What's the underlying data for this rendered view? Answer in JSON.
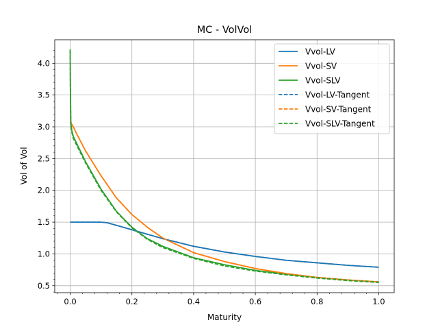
{
  "chart_data": {
    "type": "line",
    "title": "MC - VolVol",
    "xlabel": "Maturity",
    "ylabel": "Vol of Vol",
    "xlim": [
      -0.05,
      1.05
    ],
    "ylim": [
      0.39,
      4.37
    ],
    "grid": true,
    "legend_position": "top-right",
    "x_ticks": [
      0.0,
      0.2,
      0.4,
      0.6,
      0.8,
      1.0
    ],
    "x_tick_labels": [
      "0.0",
      "0.2",
      "0.4",
      "0.6",
      "0.8",
      "1.0"
    ],
    "y_ticks": [
      0.5,
      1.0,
      1.5,
      2.0,
      2.5,
      3.0,
      3.5,
      4.0
    ],
    "y_tick_labels": [
      "0.5",
      "1.0",
      "1.5",
      "2.0",
      "2.5",
      "3.0",
      "3.5",
      "4.0"
    ],
    "series": [
      {
        "name": "Vvol-LV",
        "color": "#1f77b4",
        "style": "solid",
        "x": [
          0.0,
          0.05,
          0.1,
          0.12,
          0.15,
          0.2,
          0.25,
          0.3,
          0.4,
          0.5,
          0.6,
          0.7,
          0.8,
          0.9,
          1.0
        ],
        "y": [
          1.5,
          1.5,
          1.5,
          1.49,
          1.45,
          1.38,
          1.31,
          1.24,
          1.12,
          1.03,
          0.96,
          0.9,
          0.86,
          0.82,
          0.79
        ]
      },
      {
        "name": "Vvol-SV",
        "color": "#ff7f0e",
        "style": "solid",
        "x": [
          0.0,
          0.01,
          0.02,
          0.05,
          0.1,
          0.15,
          0.2,
          0.25,
          0.3,
          0.4,
          0.5,
          0.6,
          0.7,
          0.8,
          0.9,
          1.0
        ],
        "y": [
          3.08,
          3.0,
          2.9,
          2.62,
          2.23,
          1.88,
          1.62,
          1.42,
          1.25,
          1.02,
          0.88,
          0.77,
          0.69,
          0.63,
          0.59,
          0.56
        ]
      },
      {
        "name": "Vvol-SLV",
        "color": "#2ca02c",
        "style": "solid",
        "x": [
          0.0,
          0.0005,
          0.002,
          0.005,
          0.01,
          0.02,
          0.05,
          0.1,
          0.15,
          0.2,
          0.25,
          0.3,
          0.4,
          0.5,
          0.6,
          0.7,
          0.8,
          0.9,
          1.0
        ],
        "y": [
          4.22,
          3.7,
          3.1,
          2.95,
          2.85,
          2.75,
          2.45,
          2.02,
          1.67,
          1.42,
          1.24,
          1.12,
          0.94,
          0.83,
          0.74,
          0.68,
          0.63,
          0.59,
          0.56
        ]
      },
      {
        "name": "Vvol-LV-Tangent",
        "color": "#1f77b4",
        "style": "dashed",
        "x": [
          0.0,
          0.05,
          0.1,
          0.12,
          0.15,
          0.2,
          0.25,
          0.3,
          0.4,
          0.5,
          0.6,
          0.7,
          0.8,
          0.9,
          1.0
        ],
        "y": [
          1.5,
          1.5,
          1.5,
          1.49,
          1.45,
          1.38,
          1.31,
          1.24,
          1.12,
          1.03,
          0.96,
          0.9,
          0.86,
          0.82,
          0.79
        ]
      },
      {
        "name": "Vvol-SV-Tangent",
        "color": "#ff7f0e",
        "style": "dashed",
        "x": [
          0.0,
          0.01,
          0.02,
          0.05,
          0.1,
          0.15,
          0.2,
          0.25,
          0.3,
          0.4,
          0.5,
          0.6,
          0.7,
          0.8,
          0.9,
          1.0
        ],
        "y": [
          3.08,
          3.0,
          2.9,
          2.62,
          2.23,
          1.88,
          1.62,
          1.42,
          1.25,
          1.02,
          0.88,
          0.77,
          0.69,
          0.63,
          0.59,
          0.56
        ]
      },
      {
        "name": "Vvol-SLV-Tangent",
        "color": "#2ca02c",
        "style": "dashed",
        "x": [
          0.0,
          0.0005,
          0.002,
          0.005,
          0.01,
          0.02,
          0.05,
          0.1,
          0.15,
          0.2,
          0.25,
          0.3,
          0.4,
          0.5,
          0.6,
          0.7,
          0.8,
          0.9,
          1.0
        ],
        "y": [
          4.2,
          3.65,
          3.05,
          2.92,
          2.82,
          2.72,
          2.43,
          2.0,
          1.66,
          1.41,
          1.23,
          1.1,
          0.93,
          0.81,
          0.73,
          0.67,
          0.62,
          0.58,
          0.55
        ]
      }
    ]
  }
}
